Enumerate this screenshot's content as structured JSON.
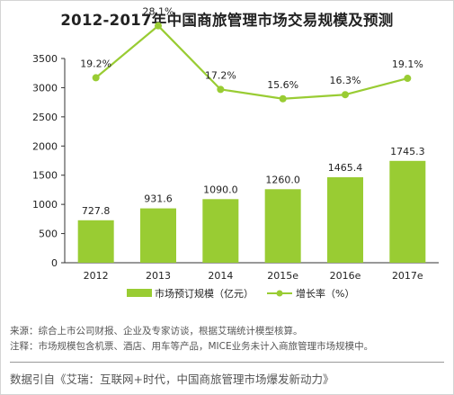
{
  "chart_data": {
    "type": "bar",
    "title": "2012-2017年中国商旅管理市场交易规模及预测",
    "categories": [
      "2012",
      "2013",
      "2014",
      "2015e",
      "2016e",
      "2017e"
    ],
    "series": [
      {
        "name": "市场预订规模（亿元）",
        "type": "bar",
        "values": [
          727.8,
          931.6,
          1090.0,
          1260.0,
          1465.4,
          1745.3
        ],
        "labels": [
          "727.8",
          "931.6",
          "1090.0",
          "1260.0",
          "1465.4",
          "1745.3"
        ],
        "color": "#99cc33"
      },
      {
        "name": "增长率（%）",
        "type": "line",
        "values": [
          19.2,
          28.1,
          17.2,
          15.6,
          16.3,
          19.1
        ],
        "labels": [
          "19.2%",
          "28.1%",
          "17.2%",
          "15.6%",
          "16.3%",
          "19.1%"
        ],
        "color": "#99cc33"
      }
    ],
    "y_ticks": [
      "0",
      "500",
      "1000",
      "1500",
      "2000",
      "2500",
      "3000",
      "3500"
    ],
    "ylim": [
      0,
      3500
    ],
    "grid": false,
    "legend": "bottom"
  },
  "notes": {
    "source": "来源：综合上市公司财报、企业及专家访谈，根据艾瑞统计模型核算。",
    "remark": "注释：市场规模包含机票、酒店、用车等产品，MICE业务未计入商旅管理市场规模中。"
  },
  "citation": "数据引自《艾瑞：互联网+时代，中国商旅管理市场爆发新动力》"
}
